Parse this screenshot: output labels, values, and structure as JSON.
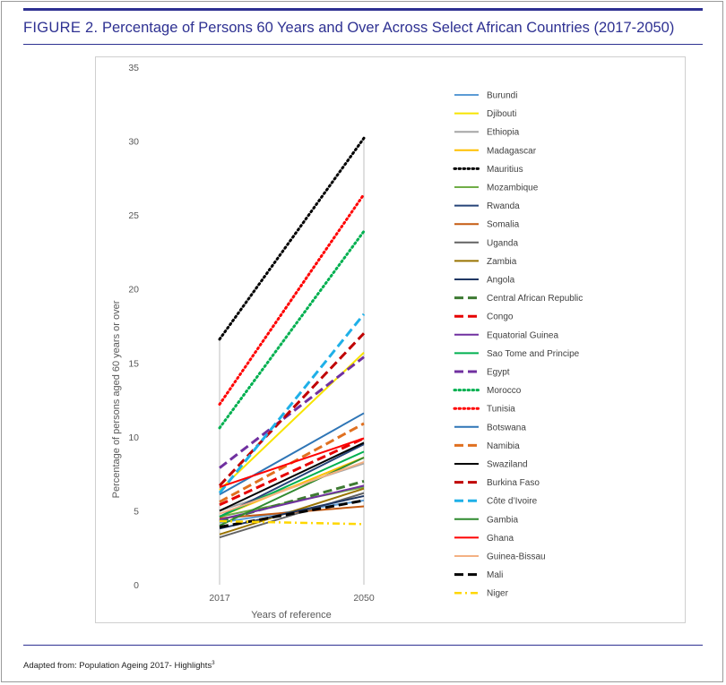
{
  "figure": {
    "label": "FIGURE 2.",
    "title": "Percentage of Persons 60 Years and Over Across Select African Countries (2017-2050)",
    "source": "Adapted from: Population Ageing 2017- Highlights",
    "source_sup": "3"
  },
  "chart_data": {
    "type": "line",
    "xlabel": "Years of reference",
    "ylabel": "Percentage of persons aged 60 years or over",
    "categories": [
      "2017",
      "2050"
    ],
    "ylim": [
      0,
      35
    ],
    "yticks": [
      "0",
      "5",
      "10",
      "15",
      "20",
      "25",
      "30",
      "35"
    ],
    "grid": false,
    "legend_position": "right",
    "series": [
      {
        "name": "Burundi",
        "values": [
          4.2,
          5.7
        ],
        "color": "#5b9bd5",
        "style": "solid"
      },
      {
        "name": "Djibouti",
        "values": [
          6.4,
          15.7
        ],
        "color": "#f7e400",
        "style": "solid"
      },
      {
        "name": "Ethiopia",
        "values": [
          5.0,
          8.2
        ],
        "color": "#a5a5a5",
        "style": "solid"
      },
      {
        "name": "Madagascar",
        "values": [
          4.6,
          8.6
        ],
        "color": "#ffc000",
        "style": "solid"
      },
      {
        "name": "Mauritius",
        "values": [
          16.6,
          30.2
        ],
        "color": "#000000",
        "style": "dotted"
      },
      {
        "name": "Mozambique",
        "values": [
          4.6,
          6.6
        ],
        "color": "#70ad47",
        "style": "solid"
      },
      {
        "name": "Rwanda",
        "values": [
          4.6,
          9.5
        ],
        "color": "#264478",
        "style": "solid"
      },
      {
        "name": "Somalia",
        "values": [
          4.5,
          5.3
        ],
        "color": "#c55a11",
        "style": "solid"
      },
      {
        "name": "Uganda",
        "values": [
          3.2,
          6.2
        ],
        "color": "#636363",
        "style": "solid"
      },
      {
        "name": "Zambia",
        "values": [
          3.4,
          6.5
        ],
        "color": "#997300",
        "style": "solid"
      },
      {
        "name": "Angola",
        "values": [
          3.8,
          6.0
        ],
        "color": "#203864",
        "style": "solid"
      },
      {
        "name": "Central African Republic",
        "values": [
          4.3,
          7.0
        ],
        "color": "#3d7a32",
        "style": "dashed"
      },
      {
        "name": "Congo",
        "values": [
          5.4,
          9.9
        ],
        "color": "#e60000",
        "style": "dashed"
      },
      {
        "name": "Equatorial Guinea",
        "values": [
          4.4,
          6.7
        ],
        "color": "#7030a0",
        "style": "solid"
      },
      {
        "name": "Sao Tome and Principe",
        "values": [
          4.6,
          9.0
        ],
        "color": "#00b050",
        "style": "solid"
      },
      {
        "name": "Egypt",
        "values": [
          7.9,
          15.4
        ],
        "color": "#7030a0",
        "style": "dashed"
      },
      {
        "name": "Morocco",
        "values": [
          10.6,
          23.9
        ],
        "color": "#00b050",
        "style": "dotted"
      },
      {
        "name": "Tunisia",
        "values": [
          12.2,
          26.4
        ],
        "color": "#ff0000",
        "style": "dotted"
      },
      {
        "name": "Botswana",
        "values": [
          6.1,
          11.6
        ],
        "color": "#2e75b6",
        "style": "solid"
      },
      {
        "name": "Namibia",
        "values": [
          5.6,
          10.9
        ],
        "color": "#e07020",
        "style": "dashed"
      },
      {
        "name": "Swaziland",
        "values": [
          5.0,
          9.6
        ],
        "color": "#000000",
        "style": "solid"
      },
      {
        "name": "Burkina Faso",
        "values": [
          6.7,
          17.0
        ],
        "color": "#c00000",
        "style": "dashed"
      },
      {
        "name": "Côte d’Ivoire",
        "values": [
          6.2,
          18.3
        ],
        "color": "#1fb0e8",
        "style": "dashed"
      },
      {
        "name": "Gambia",
        "values": [
          4.0,
          8.6
        ],
        "color": "#2f8a2f",
        "style": "solid"
      },
      {
        "name": "Ghana",
        "values": [
          6.6,
          9.9
        ],
        "color": "#ff0000",
        "style": "solid"
      },
      {
        "name": "Guinea-Bissau",
        "values": [
          4.8,
          8.3
        ],
        "color": "#f4b183",
        "style": "solid"
      },
      {
        "name": "Mali",
        "values": [
          3.9,
          5.7
        ],
        "color": "#000000",
        "style": "dashed"
      },
      {
        "name": "Niger",
        "values": [
          4.3,
          4.1
        ],
        "color": "#ffd700",
        "style": "dashdot"
      }
    ]
  }
}
